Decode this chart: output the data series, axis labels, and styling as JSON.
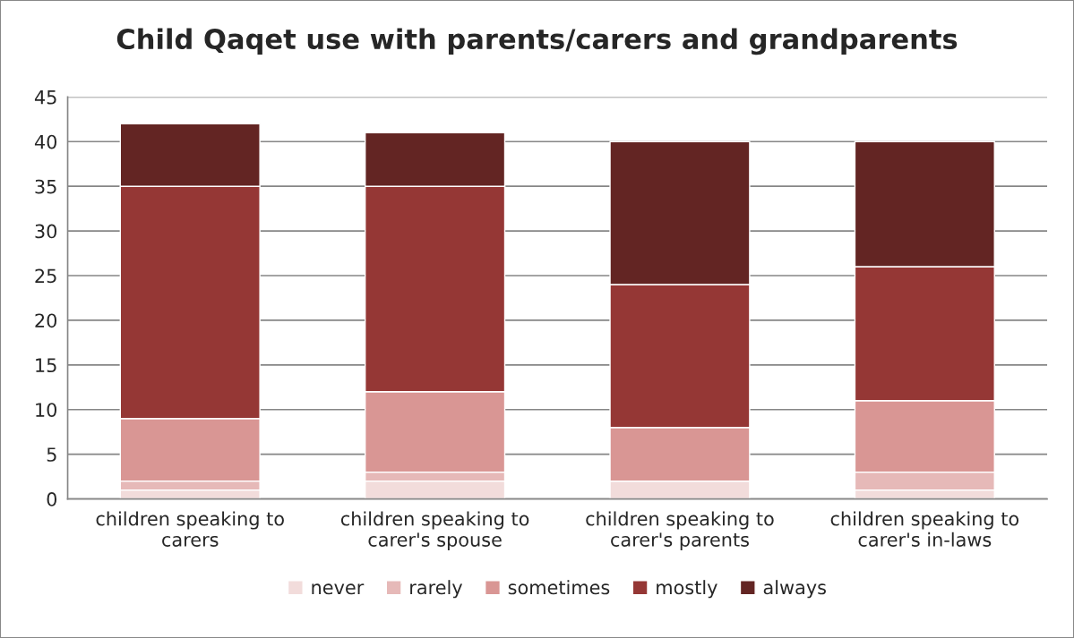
{
  "chart_data": {
    "type": "bar",
    "stacked": true,
    "title": "Child Qaqet use with parents/carers and grandparents",
    "categories": [
      "children speaking to\ncarers",
      "children speaking to\ncarer's spouse",
      "children speaking to\ncarer's parents",
      "children speaking to\ncarer's in-laws"
    ],
    "series": [
      {
        "name": "never",
        "color": "#f2dcdb",
        "values": [
          1,
          2,
          2,
          1
        ]
      },
      {
        "name": "rarely",
        "color": "#e6b9b8",
        "values": [
          1,
          1,
          0,
          2
        ]
      },
      {
        "name": "sometimes",
        "color": "#d99694",
        "values": [
          7,
          9,
          6,
          8
        ]
      },
      {
        "name": "mostly",
        "color": "#953735",
        "values": [
          26,
          23,
          16,
          15
        ]
      },
      {
        "name": "always",
        "color": "#632523",
        "values": [
          7,
          6,
          16,
          14
        ]
      }
    ],
    "ylim": [
      0,
      45
    ],
    "yticks": [
      0,
      5,
      10,
      15,
      20,
      25,
      30,
      35,
      40,
      45
    ],
    "grid": "y",
    "legend": "bottom"
  }
}
